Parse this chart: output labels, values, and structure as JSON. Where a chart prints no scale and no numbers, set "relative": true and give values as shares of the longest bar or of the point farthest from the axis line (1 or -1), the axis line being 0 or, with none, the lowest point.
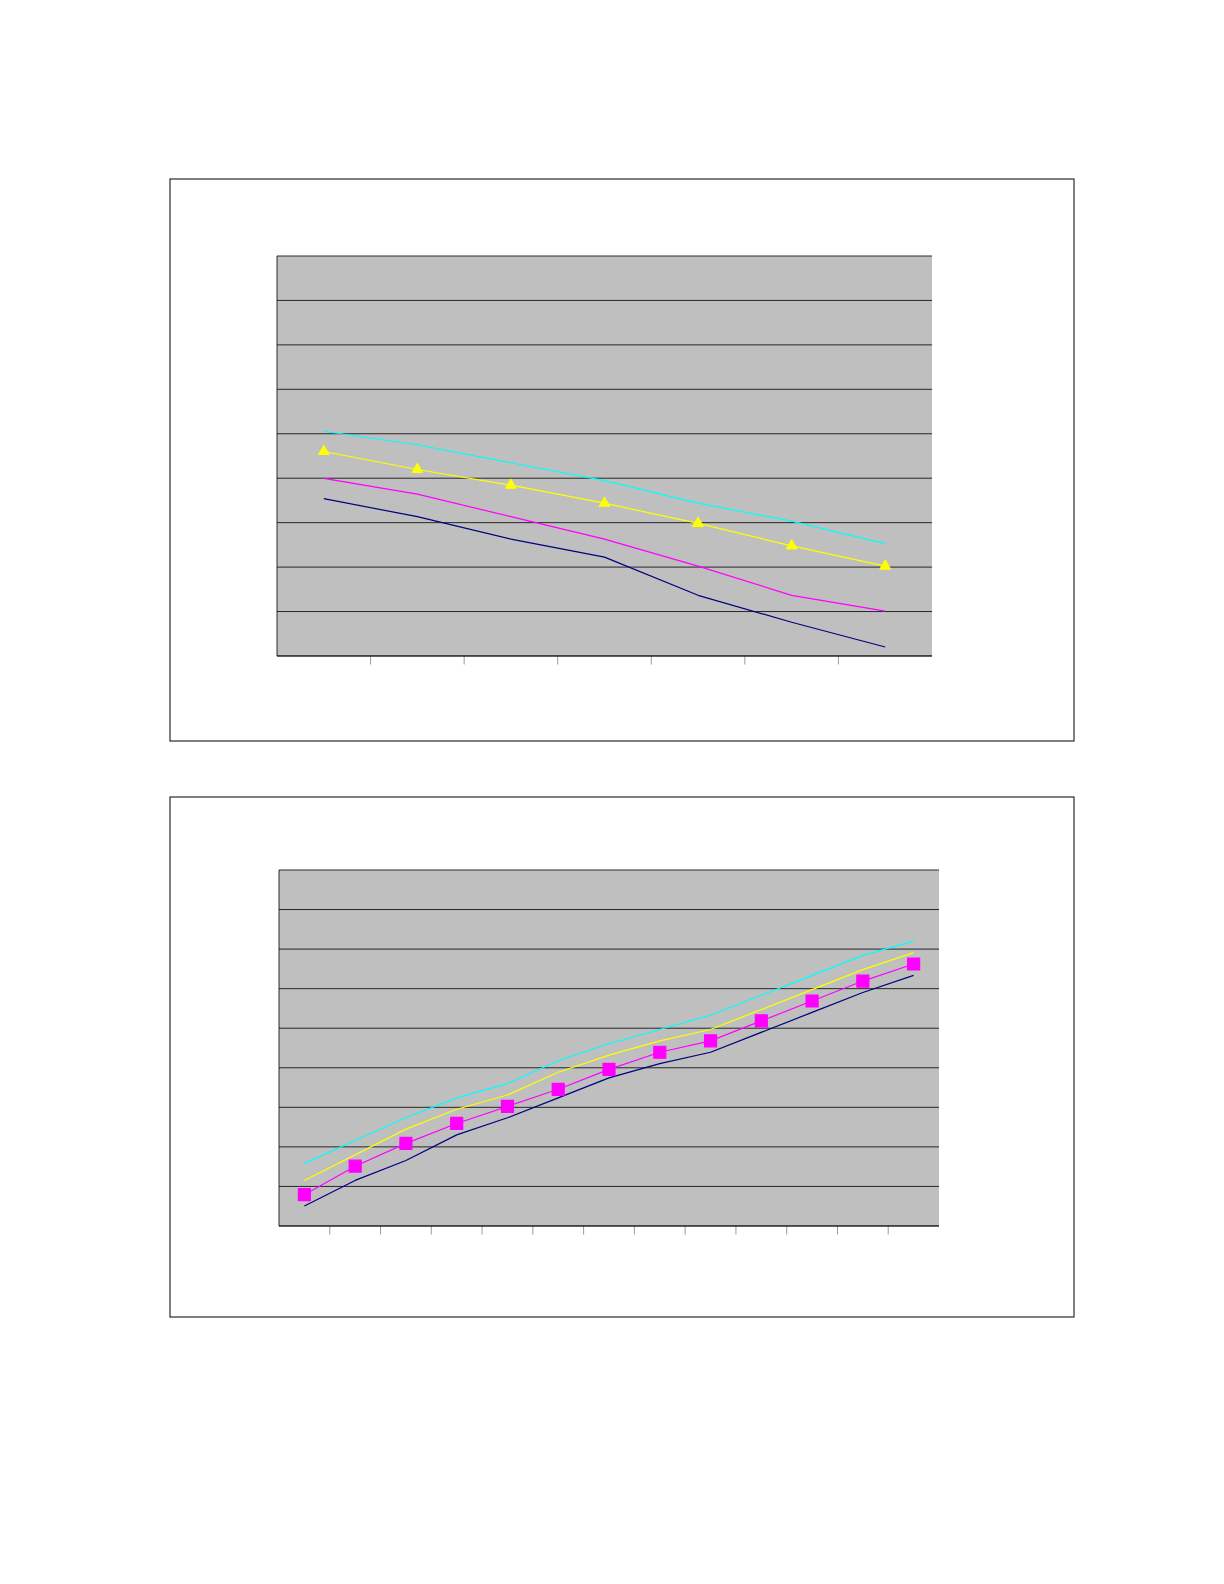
{
  "chart_data": [
    {
      "type": "line",
      "relative": true,
      "categories": [
        null,
        null,
        null,
        null,
        null,
        null,
        null
      ],
      "grid": "y",
      "tick_labels": false,
      "series": [
        {
          "color": "#000080",
          "values": [
            0.7,
            0.62,
            0.52,
            0.44,
            0.27,
            0.15,
            0.04
          ]
        },
        {
          "color": "#ff00ff",
          "values": [
            0.79,
            0.72,
            0.62,
            0.52,
            0.4,
            0.27,
            0.2
          ]
        },
        {
          "color": "#ffff00",
          "marker": "triangle",
          "values": [
            0.91,
            0.83,
            0.76,
            0.68,
            0.59,
            0.49,
            0.4
          ]
        },
        {
          "color": "#00ffff",
          "values": [
            1,
            0.94,
            0.86,
            0.78,
            0.68,
            0.6,
            0.5
          ]
        }
      ]
    },
    {
      "type": "line",
      "relative": true,
      "categories": [
        null,
        null,
        null,
        null,
        null,
        null,
        null,
        null,
        null,
        null,
        null,
        null,
        null
      ],
      "grid": "y",
      "tick_labels": false,
      "series": [
        {
          "color": "#000080",
          "values": [
            0.07,
            0.16,
            0.23,
            0.32,
            0.38,
            0.45,
            0.52,
            0.57,
            0.61,
            0.68,
            0.75,
            0.82,
            0.88
          ]
        },
        {
          "color": "#ff00ff",
          "marker": "square",
          "values": [
            0.11,
            0.21,
            0.29,
            0.36,
            0.42,
            0.48,
            0.55,
            0.61,
            0.65,
            0.72,
            0.79,
            0.86,
            0.92
          ]
        },
        {
          "color": "#ffff00",
          "values": [
            0.16,
            0.25,
            0.34,
            0.41,
            0.46,
            0.54,
            0.6,
            0.65,
            0.69,
            0.76,
            0.83,
            0.9,
            0.96
          ]
        },
        {
          "color": "#00ffff",
          "values": [
            0.22,
            0.3,
            0.38,
            0.45,
            0.5,
            0.58,
            0.64,
            0.69,
            0.74,
            0.81,
            0.88,
            0.95,
            1
          ]
        }
      ]
    }
  ]
}
